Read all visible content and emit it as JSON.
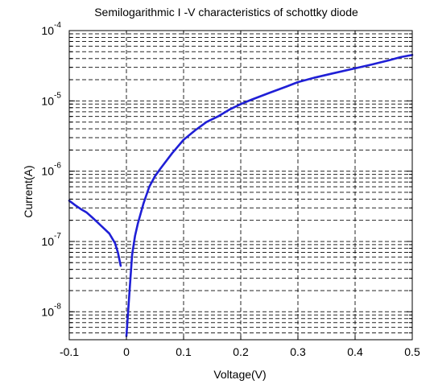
{
  "chart_data": {
    "type": "line",
    "title": "Semilogarithmic I -V characteristics of schottky diode",
    "xlabel": "Voltage(V)",
    "ylabel": "Current(A)",
    "xlim": [
      -0.1,
      0.5
    ],
    "ylim": [
      4e-09,
      0.0001
    ],
    "yscale": "log",
    "grid": true,
    "x_ticks": [
      {
        "value": -0.1,
        "label": "-0.1"
      },
      {
        "value": 0,
        "label": "0"
      },
      {
        "value": 0.1,
        "label": "0.1"
      },
      {
        "value": 0.2,
        "label": "0.2"
      },
      {
        "value": 0.3,
        "label": "0.3"
      },
      {
        "value": 0.4,
        "label": "0.4"
      },
      {
        "value": 0.5,
        "label": "0.5"
      }
    ],
    "y_ticks": [
      {
        "value": 1e-08,
        "base": "10",
        "exp": "-8"
      },
      {
        "value": 1e-07,
        "base": "10",
        "exp": "-7"
      },
      {
        "value": 1e-06,
        "base": "10",
        "exp": "-6"
      },
      {
        "value": 1e-05,
        "base": "10",
        "exp": "-5"
      },
      {
        "value": 0.0001,
        "base": "10",
        "exp": "-4"
      }
    ],
    "series": [
      {
        "color": "#1f1fd6",
        "points": [
          [
            -0.1,
            3.8e-07
          ],
          [
            -0.09,
            3.3e-07
          ],
          [
            -0.08,
            2.9e-07
          ],
          [
            -0.07,
            2.6e-07
          ],
          [
            -0.06,
            2.2e-07
          ],
          [
            -0.05,
            1.85e-07
          ],
          [
            -0.04,
            1.55e-07
          ],
          [
            -0.03,
            1.3e-07
          ],
          [
            -0.02,
            9.5e-08
          ],
          [
            -0.015,
            7e-08
          ],
          [
            -0.01,
            4.5e-08
          ]
        ]
      },
      {
        "color": "#1f1fd6",
        "points": [
          [
            0.0,
            4.5e-09
          ],
          [
            0.003,
            1e-08
          ],
          [
            0.007,
            3e-08
          ],
          [
            0.01,
            6.5e-08
          ],
          [
            0.015,
            1.2e-07
          ],
          [
            0.02,
            1.8e-07
          ],
          [
            0.03,
            3.5e-07
          ],
          [
            0.04,
            6e-07
          ],
          [
            0.05,
            8.5e-07
          ],
          [
            0.06,
            1.1e-06
          ],
          [
            0.08,
            1.8e-06
          ],
          [
            0.1,
            2.8e-06
          ],
          [
            0.12,
            3.8e-06
          ],
          [
            0.14,
            5e-06
          ],
          [
            0.16,
            6e-06
          ],
          [
            0.18,
            7.5e-06
          ],
          [
            0.2,
            9e-06
          ],
          [
            0.22,
            1.05e-05
          ],
          [
            0.25,
            1.3e-05
          ],
          [
            0.28,
            1.6e-05
          ],
          [
            0.3,
            1.85e-05
          ],
          [
            0.33,
            2.15e-05
          ],
          [
            0.36,
            2.45e-05
          ],
          [
            0.4,
            2.9e-05
          ],
          [
            0.43,
            3.3e-05
          ],
          [
            0.46,
            3.8e-05
          ],
          [
            0.48,
            4.2e-05
          ],
          [
            0.5,
            4.5e-05
          ]
        ]
      }
    ]
  }
}
